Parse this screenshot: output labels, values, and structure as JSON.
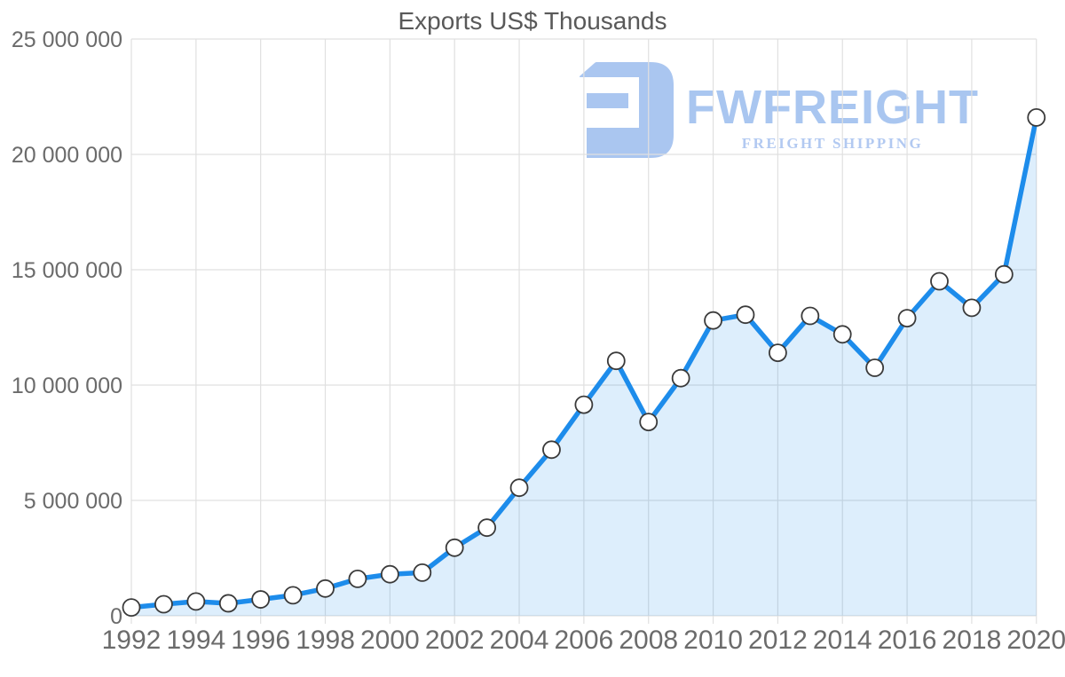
{
  "chart_data": {
    "type": "area",
    "title": "Exports US$ Thousands",
    "x": [
      1992,
      1993,
      1994,
      1995,
      1996,
      1997,
      1998,
      1999,
      2000,
      2001,
      2002,
      2003,
      2004,
      2005,
      2006,
      2007,
      2008,
      2009,
      2010,
      2011,
      2012,
      2013,
      2014,
      2015,
      2016,
      2017,
      2018,
      2019,
      2020
    ],
    "values": [
      360000,
      500000,
      620000,
      540000,
      710000,
      890000,
      1180000,
      1600000,
      1800000,
      1870000,
      2950000,
      3820000,
      5550000,
      7200000,
      9150000,
      11050000,
      8400000,
      10300000,
      12800000,
      13050000,
      11400000,
      13000000,
      12200000,
      10750000,
      12900000,
      14500000,
      13350000,
      14800000,
      21600000
    ],
    "xlabel": "",
    "ylabel": "",
    "xlim": [
      1992,
      2020
    ],
    "ylim": [
      0,
      25000000
    ],
    "x_ticks": [
      1992,
      1994,
      1996,
      1998,
      2000,
      2002,
      2004,
      2006,
      2008,
      2010,
      2012,
      2014,
      2016,
      2018,
      2020
    ],
    "x_tick_labels": [
      "1992",
      "1994",
      "1996",
      "1998",
      "2000",
      "2002",
      "2004",
      "2006",
      "2008",
      "2010",
      "2012",
      "2014",
      "2016",
      "2018",
      "2020"
    ],
    "y_ticks": [
      0,
      5000000,
      10000000,
      15000000,
      20000000,
      25000000
    ],
    "y_tick_labels": [
      "0",
      "5 000 000",
      "10 000 000",
      "15 000 000",
      "20 000 000",
      "25 000 000"
    ],
    "grid": "on",
    "legend_position": "none",
    "marker": "circle",
    "colors": {
      "line": "#1d8ceb",
      "fill": "rgba(30,143,238,0.15)",
      "grid": "#e0e0e0",
      "axis_text": "#6b6b6b",
      "title_text": "#595959",
      "marker_fill": "#ffffff",
      "marker_stroke": "#3a3a3a"
    }
  },
  "watermark": {
    "brand": "FWFREIGHT",
    "tagline": "FREIGHT SHIPPING",
    "icon": "fwfreight-logo-mark",
    "brand_color": "#a9c6f0",
    "tagline_color": "#b2c9f1",
    "icon_color": "#aac6f0"
  }
}
